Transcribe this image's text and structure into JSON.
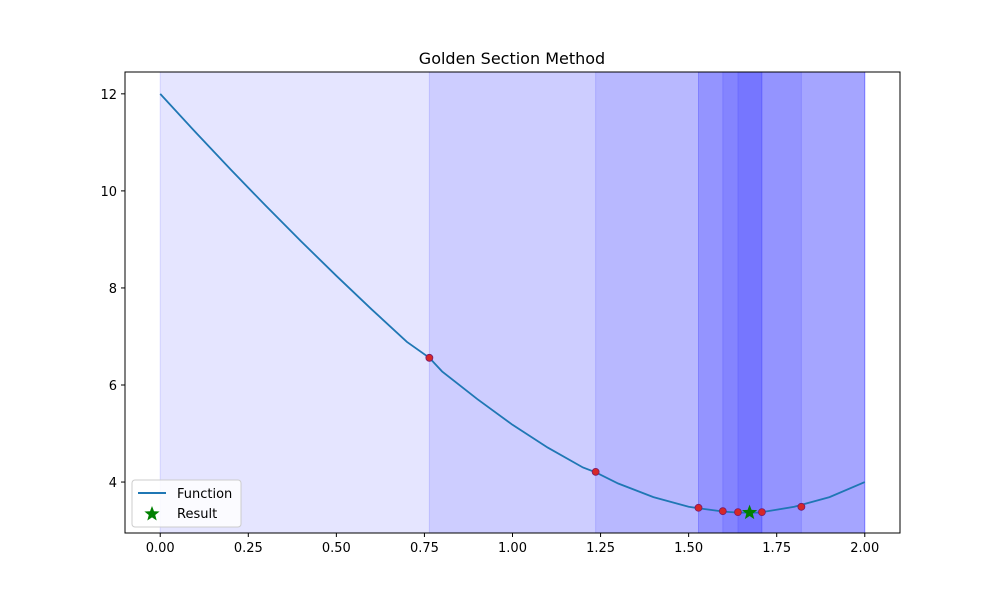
{
  "chart_data": {
    "type": "line",
    "title": "Golden Section Method",
    "xlabel": "",
    "ylabel": "",
    "xlim": [
      -0.1,
      2.1
    ],
    "ylim": [
      2.95,
      12.45
    ],
    "x_ticks": [
      0.0,
      0.25,
      0.5,
      0.75,
      1.0,
      1.25,
      1.5,
      1.75,
      2.0
    ],
    "x_tick_labels": [
      "0.00",
      "0.25",
      "0.50",
      "0.75",
      "1.00",
      "1.25",
      "1.50",
      "1.75",
      "2.00"
    ],
    "y_ticks": [
      4,
      6,
      8,
      10,
      12
    ],
    "y_tick_labels": [
      "4",
      "6",
      "8",
      "10",
      "12"
    ],
    "grid": false,
    "function_series": {
      "name": "Function",
      "color": "#1f77b4",
      "x": [
        0.0,
        0.1,
        0.2,
        0.3,
        0.4,
        0.5,
        0.6,
        0.7,
        0.764,
        0.8,
        0.9,
        1.0,
        1.1,
        1.2,
        1.236,
        1.3,
        1.4,
        1.5,
        1.528,
        1.6,
        1.641,
        1.672,
        1.7,
        1.8,
        1.9,
        2.0
      ],
      "y": [
        12.0,
        11.21,
        10.44,
        9.69,
        8.96,
        8.25,
        7.56,
        6.89,
        6.56,
        6.28,
        5.71,
        5.18,
        4.71,
        4.3,
        4.2,
        3.97,
        3.69,
        3.49,
        3.46,
        3.39,
        3.37,
        3.37,
        3.37,
        3.49,
        3.69,
        4.0
      ]
    },
    "intervals": [
      {
        "a": 0.0,
        "b": 2.0
      },
      {
        "a": 0.764,
        "b": 2.0
      },
      {
        "a": 1.236,
        "b": 2.0
      },
      {
        "a": 1.528,
        "b": 2.0
      },
      {
        "a": 1.528,
        "b": 1.82
      },
      {
        "a": 1.597,
        "b": 1.708
      },
      {
        "a": 1.64,
        "b": 1.708
      }
    ],
    "interval_color": "#0000ff",
    "evaluated_points": {
      "color": "#d62728",
      "x": [
        0.764,
        1.236,
        1.528,
        1.597,
        1.64,
        1.708,
        1.82
      ],
      "y": [
        6.56,
        4.21,
        3.47,
        3.4,
        3.38,
        3.38,
        3.49
      ]
    },
    "result": {
      "name": "Result",
      "color": "#008000",
      "marker": "star",
      "x": 1.673,
      "y": 3.37
    },
    "legend": {
      "position": "lower-left",
      "entries": [
        "Function",
        "Result"
      ]
    }
  }
}
